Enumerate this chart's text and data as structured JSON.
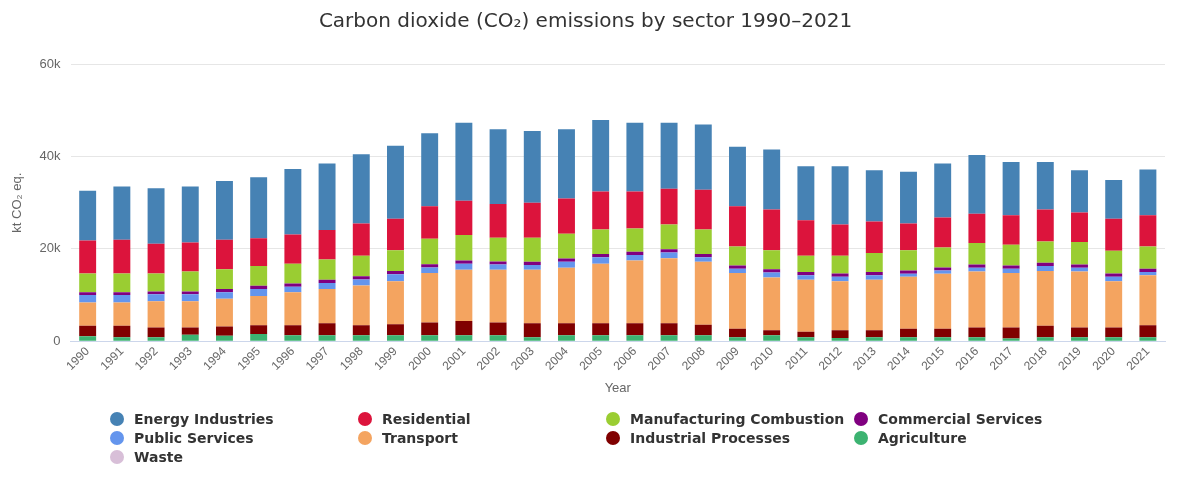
{
  "chart_data": {
    "type": "bar",
    "stacked": true,
    "title": "Carbon dioxide (CO₂) emissions by sector 1990–2021",
    "xlabel": "Year",
    "ylabel": "kt CO₂ eq.",
    "categories": [
      "1990",
      "1991",
      "1992",
      "1993",
      "1994",
      "1995",
      "1996",
      "1997",
      "1998",
      "1999",
      "2000",
      "2001",
      "2002",
      "2003",
      "2004",
      "2005",
      "2006",
      "2007",
      "2008",
      "2009",
      "2010",
      "2011",
      "2012",
      "2013",
      "2014",
      "2015",
      "2016",
      "2017",
      "2018",
      "2019",
      "2020",
      "2021"
    ],
    "ylim": [
      0,
      60000
    ],
    "yticks": [
      0,
      {
        "value": 20000,
        "label": "20k"
      },
      {
        "value": 40000,
        "label": "40k"
      },
      {
        "value": 60000,
        "label": "60k"
      }
    ],
    "grid": "y",
    "legend": "bottom",
    "series": [
      {
        "name": "Waste",
        "color": "#d8bfd8",
        "values": [
          null,
          null,
          null,
          null,
          null,
          null,
          null,
          null,
          null,
          null,
          null,
          null,
          null,
          null,
          null,
          null,
          null,
          null,
          null,
          null,
          null,
          null,
          null,
          null,
          null,
          null,
          null,
          null,
          null,
          null,
          null,
          null
        ]
      },
      {
        "name": "Agriculture",
        "color": "#3cb371",
        "values": [
          1100,
          900,
          900,
          1400,
          1200,
          1600,
          1300,
          1300,
          1300,
          1300,
          1300,
          1300,
          1300,
          900,
          1300,
          1300,
          1300,
          1300,
          1300,
          900,
          1300,
          900,
          700,
          900,
          900,
          900,
          900,
          600,
          900,
          900,
          900,
          900
        ]
      },
      {
        "name": "Industrial Processes",
        "color": "#800000",
        "values": [
          2300,
          2500,
          2100,
          1600,
          2000,
          1900,
          2200,
          2600,
          2200,
          2400,
          2800,
          3100,
          2800,
          3000,
          2600,
          2600,
          2600,
          2600,
          2300,
          1800,
          1100,
          1200,
          1700,
          1500,
          1800,
          1800,
          2100,
          2400,
          2500,
          2100,
          2100,
          2600
        ]
      },
      {
        "name": "Transport",
        "color": "#f4a460",
        "values": [
          5000,
          5000,
          5700,
          5700,
          6000,
          6300,
          7100,
          7400,
          8600,
          9300,
          10700,
          11100,
          11400,
          11600,
          12000,
          12900,
          13600,
          14100,
          13600,
          12100,
          11400,
          11200,
          10600,
          10900,
          11300,
          11900,
          12100,
          11800,
          11800,
          12100,
          10000,
          10800
        ]
      },
      {
        "name": "Public Services",
        "color": "#6495ed",
        "values": [
          1600,
          1600,
          1500,
          1500,
          1400,
          1500,
          1200,
          1300,
          1300,
          1500,
          1200,
          1300,
          1100,
          1000,
          1300,
          1400,
          1200,
          1200,
          1000,
          900,
          1100,
          1000,
          1000,
          1000,
          600,
          700,
          800,
          900,
          1100,
          800,
          1000,
          700
        ]
      },
      {
        "name": "Commercial Services",
        "color": "#800080",
        "values": [
          600,
          600,
          600,
          600,
          700,
          700,
          700,
          700,
          700,
          700,
          700,
          700,
          700,
          700,
          700,
          700,
          700,
          700,
          700,
          700,
          700,
          700,
          700,
          700,
          700,
          700,
          700,
          700,
          700,
          700,
          700,
          700
        ]
      },
      {
        "name": "Manufacturing Combustion",
        "color": "#9acd32",
        "values": [
          4100,
          4100,
          3900,
          4300,
          4300,
          4300,
          4300,
          4400,
          4400,
          4500,
          5500,
          5500,
          5100,
          5200,
          5400,
          5300,
          5000,
          5400,
          5300,
          4100,
          4100,
          3500,
          3800,
          4100,
          4400,
          4300,
          4700,
          4500,
          4600,
          4900,
          4900,
          4800
        ]
      },
      {
        "name": "Residential",
        "color": "#dc143c",
        "values": [
          7100,
          7300,
          6400,
          6300,
          6400,
          6000,
          6300,
          6400,
          7000,
          6800,
          7000,
          7400,
          7300,
          7600,
          7600,
          8200,
          8000,
          7700,
          8600,
          8700,
          8800,
          7700,
          6800,
          6800,
          5800,
          6500,
          6300,
          6400,
          6900,
          6400,
          6900,
          6800
        ]
      },
      {
        "name": "Energy Industries",
        "color": "#4682b4",
        "values": [
          10800,
          11500,
          12000,
          12100,
          12700,
          13200,
          14200,
          14400,
          15000,
          15800,
          15800,
          16900,
          16200,
          15500,
          15000,
          15500,
          14900,
          14300,
          14100,
          12900,
          13000,
          11700,
          12600,
          11100,
          11200,
          11700,
          12700,
          11500,
          10300,
          9100,
          8400,
          9900
        ]
      }
    ]
  }
}
